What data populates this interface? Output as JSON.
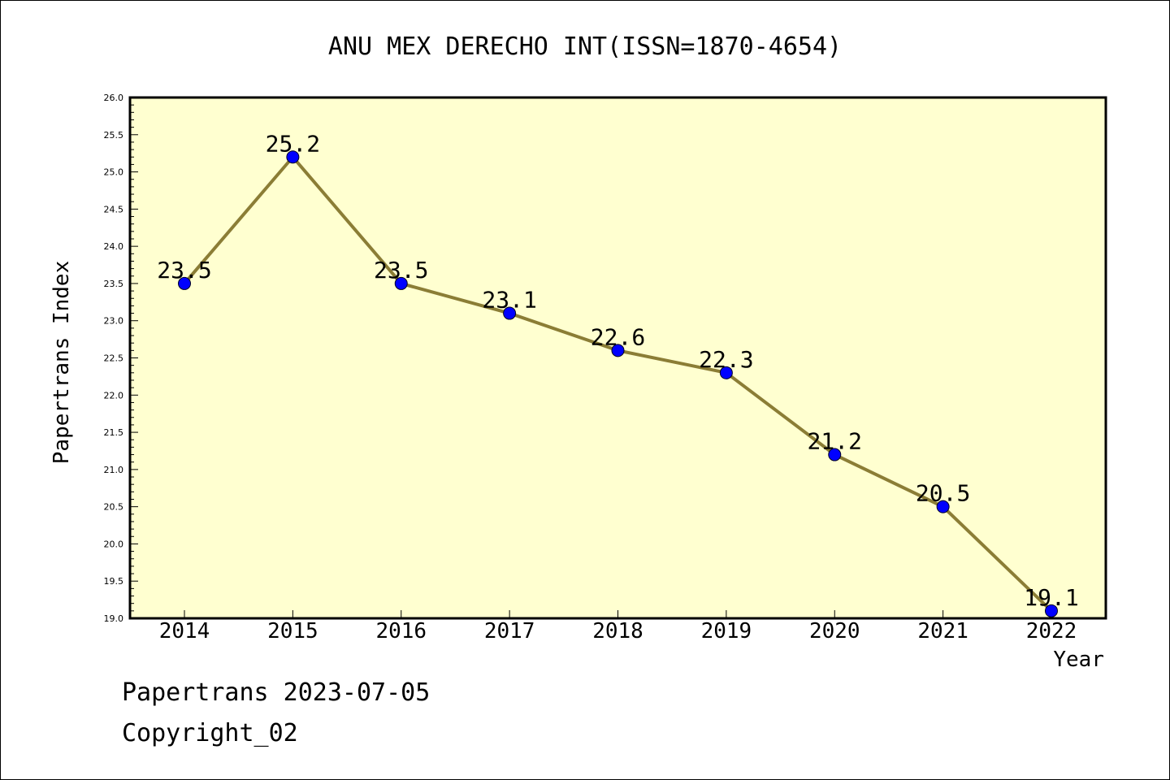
{
  "chart_data": {
    "type": "line",
    "title": "ANU MEX DERECHO INT(ISSN=1870-4654)",
    "xlabel": "Year",
    "ylabel": "Papertrans Index",
    "x": [
      "2014",
      "2015",
      "2016",
      "2017",
      "2018",
      "2019",
      "2020",
      "2021",
      "2022"
    ],
    "series": [
      {
        "values": [
          23.5,
          25.2,
          23.5,
          23.1,
          22.6,
          22.3,
          21.2,
          20.5,
          19.1
        ],
        "labels": [
          "23.5",
          "25.2",
          "23.5",
          "23.1",
          "22.6",
          "22.3",
          "21.2",
          "20.5",
          "19.1"
        ]
      }
    ],
    "ylim": [
      19.0,
      26.0
    ],
    "yticks": [
      "19.0",
      "19.5",
      "20.0",
      "20.5",
      "21.0",
      "21.5",
      "22.0",
      "22.5",
      "23.0",
      "23.5",
      "24.0",
      "24.5",
      "25.0",
      "25.5",
      "26.0"
    ],
    "grid": false,
    "colors": {
      "plot_background": "#ffffd0",
      "line": "#8b7d35",
      "marker": "#0000ff"
    }
  },
  "footer": {
    "date_line": "Papertrans 2023-07-05",
    "copyright": "Copyright_02"
  }
}
